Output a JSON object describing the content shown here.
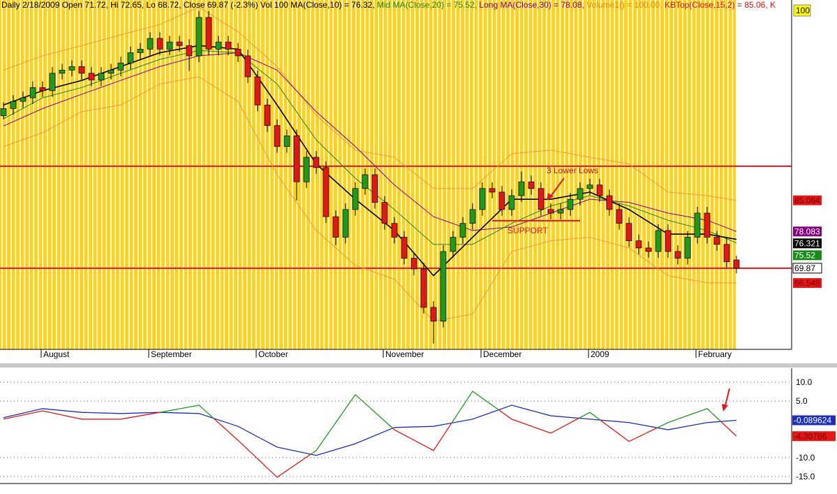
{
  "chart_data": [
    {
      "type": "candlestick",
      "title_parts": [
        {
          "text": "Daily 2/18/2009 Open 71.72, Hi 72.65, Lo 68.72, Close 69.87 (-2.3%) Vol 100 MA(Close,10) = 76.32, ",
          "color": "#000000"
        },
        {
          "text": "Mid MA(Close,20) = 75.52, ",
          "color": "#1a8a1a"
        },
        {
          "text": "Long MA(Close,30) = 78.08, ",
          "color": "#800080"
        },
        {
          "text": "Volume1() = 100.00, ",
          "color": "#e08a00"
        },
        {
          "text": "KBTop(Close,15,2) = 85.06, K",
          "color": "#d01010"
        }
      ],
      "ylim": [
        51.7,
        129.9
      ],
      "up_color": "#1f9a1f",
      "down_color": "#e01818",
      "ohlc": [
        [
          104,
          107,
          103.2,
          105.6
        ],
        [
          105.6,
          108.6,
          104.2,
          107.2
        ],
        [
          107.2,
          109.4,
          105.8,
          108
        ],
        [
          108,
          111.7,
          106.6,
          110.3
        ],
        [
          110.3,
          111.7,
          108.2,
          109.6
        ],
        [
          109.6,
          114.9,
          108.2,
          113.5
        ],
        [
          113.5,
          115.6,
          112.1,
          114.2
        ],
        [
          114.2,
          116.4,
          112.8,
          115
        ],
        [
          115,
          116.4,
          112.1,
          113.5
        ],
        [
          113.5,
          114.9,
          110.6,
          112
        ],
        [
          112,
          114.9,
          110.6,
          113.5
        ],
        [
          113.5,
          115.6,
          112.1,
          114.2
        ],
        [
          114.2,
          117.2,
          112.8,
          115.8
        ],
        [
          115.8,
          119.5,
          114.4,
          118.1
        ],
        [
          118.1,
          120.3,
          116.7,
          118.9
        ],
        [
          118.9,
          122.7,
          117.5,
          121.3
        ],
        [
          121.3,
          122.7,
          117.5,
          118.9
        ],
        [
          118.9,
          121.9,
          117.5,
          120.5
        ],
        [
          120.5,
          121.9,
          118.3,
          119.7
        ],
        [
          119.7,
          121.1,
          114,
          117.4
        ],
        [
          117.4,
          127.4,
          116,
          126
        ],
        [
          126,
          127.4,
          117.5,
          118.9
        ],
        [
          118.9,
          121.9,
          117.5,
          120.5
        ],
        [
          120.5,
          121.9,
          117.5,
          118.9
        ],
        [
          118.9,
          120.3,
          116,
          117.4
        ],
        [
          117.4,
          118.8,
          111.3,
          112.7
        ],
        [
          112.7,
          114.1,
          105,
          106.4
        ],
        [
          106.4,
          107.8,
          100.4,
          101.8
        ],
        [
          101.8,
          103.2,
          95.7,
          97.1
        ],
        [
          97.1,
          100.9,
          95.7,
          99.5
        ],
        [
          99.5,
          100.9,
          85,
          89.2
        ],
        [
          89.2,
          96.1,
          87.8,
          94.7
        ],
        [
          94.7,
          96.1,
          91,
          92.4
        ],
        [
          92.4,
          93.8,
          80,
          81.4
        ],
        [
          81.4,
          82.8,
          75,
          76.8
        ],
        [
          76.8,
          84.4,
          75.4,
          83
        ],
        [
          83,
          89.1,
          81.6,
          87.7
        ],
        [
          87.7,
          92.2,
          86.3,
          90.8
        ],
        [
          90.8,
          92.2,
          83.2,
          84.6
        ],
        [
          84.6,
          86,
          78.5,
          79.9
        ],
        [
          79.9,
          81.3,
          75.4,
          76.8
        ],
        [
          76.8,
          78.2,
          70.7,
          72.1
        ],
        [
          72.1,
          73.5,
          68.3,
          69.7
        ],
        [
          69.7,
          71.1,
          59.7,
          61.1
        ],
        [
          61.1,
          62.5,
          53,
          58
        ],
        [
          58,
          75,
          56.6,
          73.6
        ],
        [
          73.6,
          78.2,
          72.2,
          76.8
        ],
        [
          76.8,
          81.3,
          75.4,
          79.9
        ],
        [
          79.9,
          84.4,
          78.5,
          83
        ],
        [
          83,
          89.1,
          81.6,
          87.7
        ],
        [
          87.7,
          89.1,
          85.5,
          86.9
        ],
        [
          86.9,
          88.3,
          81.6,
          83
        ],
        [
          83,
          87.5,
          81.6,
          86.1
        ],
        [
          86.1,
          91.5,
          84.7,
          89.2
        ],
        [
          89.2,
          90.6,
          86.3,
          87.7
        ],
        [
          87.7,
          89.1,
          81.6,
          83
        ],
        [
          83,
          84.4,
          80.8,
          82.2
        ],
        [
          82.2,
          84.4,
          80.8,
          83
        ],
        [
          83,
          86.7,
          81.6,
          85.3
        ],
        [
          85.3,
          89.1,
          83.9,
          87.7
        ],
        [
          87.7,
          89.9,
          86.3,
          88.5
        ],
        [
          88.5,
          89.9,
          84.7,
          86.1
        ],
        [
          86.1,
          87.5,
          81.6,
          83
        ],
        [
          83,
          84.4,
          78.5,
          79.9
        ],
        [
          79.9,
          81.3,
          74.6,
          76
        ],
        [
          76,
          77.4,
          73,
          74.4
        ],
        [
          74.4,
          75.8,
          72.2,
          73.6
        ],
        [
          73.6,
          79.7,
          72.2,
          78.3
        ],
        [
          78.3,
          79.7,
          72.2,
          73.6
        ],
        [
          73.6,
          75,
          70.7,
          72.1
        ],
        [
          72.1,
          78.2,
          70.7,
          76.8
        ],
        [
          76.8,
          83.6,
          75.4,
          82.2
        ],
        [
          82.2,
          83.6,
          75.4,
          76.8
        ],
        [
          76.8,
          78.2,
          73.8,
          75.2
        ],
        [
          75.2,
          76.6,
          69.9,
          71.3
        ],
        [
          71.72,
          72.65,
          68.72,
          69.87
        ]
      ],
      "xticks": [
        {
          "value": 2,
          "label": "August"
        },
        {
          "value": 13,
          "label": "September"
        },
        {
          "value": 24,
          "label": "October"
        },
        {
          "value": 37,
          "label": "November"
        },
        {
          "value": 47,
          "label": "December"
        },
        {
          "value": 58,
          "label": "2009"
        },
        {
          "value": 69,
          "label": "February"
        }
      ],
      "overlays": {
        "x": [
          0,
          4,
          8,
          12,
          16,
          20,
          24,
          28,
          32,
          36,
          40,
          44,
          48,
          52,
          56,
          60,
          64,
          68,
          72,
          75
        ],
        "series": [
          {
            "color": "#e89a3a",
            "values": [
              114.2,
              117.4,
              119.7,
              122.1,
              124.4,
              128.3,
              122.8,
              115,
              104.1,
              96.3,
              94.7,
              87.7,
              87.7,
              95.5,
              96.3,
              94.7,
              93.2,
              86.9,
              86.1,
              85.06
            ]
          },
          {
            "color": "#e89a3a",
            "values": [
              97.1,
              100.2,
              104.9,
              106.4,
              111.1,
              112.7,
              107.2,
              90.8,
              78.3,
              70.5,
              67.4,
              58,
              59.6,
              73.6,
              76,
              76.8,
              74.4,
              68.2,
              66.6,
              66.55
            ]
          },
          {
            "color": "#800080",
            "values": [
              101.7,
              105.6,
              108.8,
              111.9,
              115,
              117.4,
              118.1,
              114.2,
              104.9,
              97.1,
              88.5,
              81.4,
              78.3,
              79.1,
              82.2,
              85.3,
              84.6,
              82.2,
              80.6,
              78.08
            ]
          },
          {
            "color": "#1a8a1a",
            "values": [
              103.3,
              108,
              110.3,
              113.5,
              116.6,
              118.6,
              118.1,
              111.1,
              98.6,
              90,
              83,
              75.2,
              75.2,
              79.9,
              83.8,
              86.1,
              83.8,
              80.6,
              78.3,
              75.52
            ]
          },
          {
            "color": "#000000",
            "values": [
              106.4,
              109.6,
              111.9,
              115,
              118.1,
              119.7,
              118.9,
              106.4,
              93.2,
              85.3,
              78.3,
              68.2,
              76.8,
              85.3,
              85.3,
              86.9,
              83,
              77.5,
              77.5,
              76.32
            ]
          }
        ]
      },
      "hlines": [
        {
          "value": 92.7,
          "color": "#e01818"
        },
        {
          "value": 69.87,
          "color": "#e01818"
        }
      ],
      "support": {
        "value": 80.5,
        "from": 50,
        "to": 59,
        "label": "SUPPORT",
        "color": "#e01818"
      },
      "annotation": "3 Lower Lows",
      "volume_scale_label": 100,
      "right_labels": [
        {
          "value": 85.064,
          "color": "#e01818",
          "text_color": "#7a0000"
        },
        {
          "value": 78.083,
          "color": "#800080",
          "text_color": "#ffffff"
        },
        {
          "value": 76.321,
          "color": "#000000",
          "text_color": "#ffffff"
        },
        {
          "value": 75.52,
          "color": "#1a8a1a",
          "text_color": "#ffffff"
        },
        {
          "value": 69.87,
          "color": "#ffffff",
          "text_color": "#000000"
        },
        {
          "value": 66.548,
          "color": "#e01818",
          "text_color": "#7a0000"
        }
      ]
    },
    {
      "type": "line",
      "ylim": [
        -16.85,
        13.7
      ],
      "yticks": [
        {
          "value": 10,
          "label": "10.0"
        },
        {
          "value": 5,
          "label": "5.0"
        },
        {
          "value": -10,
          "label": "-10.0"
        },
        {
          "value": -15,
          "label": "-15.0"
        }
      ],
      "x": [
        0,
        4,
        8,
        12,
        16,
        20,
        24,
        28,
        32,
        36,
        40,
        44,
        48,
        52,
        56,
        60,
        64,
        68,
        72,
        75
      ],
      "series": [
        {
          "color": "#1c2fb5",
          "values": [
            0.6,
            3,
            2,
            1.7,
            2,
            1.7,
            -1.7,
            -7.2,
            -9.4,
            -6.3,
            -2,
            -1.7,
            0.2,
            3.9,
            1.1,
            0.2,
            -0.7,
            -2.6,
            -0.7,
            -0.089624
          ]
        },
        {
          "up_color": "#1f9a1f",
          "down_color": "#e01818",
          "values": [
            0.2,
            2.4,
            0.2,
            0.2,
            2,
            3.9,
            -5.4,
            -15.2,
            -8.1,
            6.7,
            -2.6,
            -8.1,
            7.6,
            0.2,
            -3.5,
            2,
            -5.7,
            -0.7,
            3,
            -4.30786
          ]
        }
      ]
    }
  ]
}
